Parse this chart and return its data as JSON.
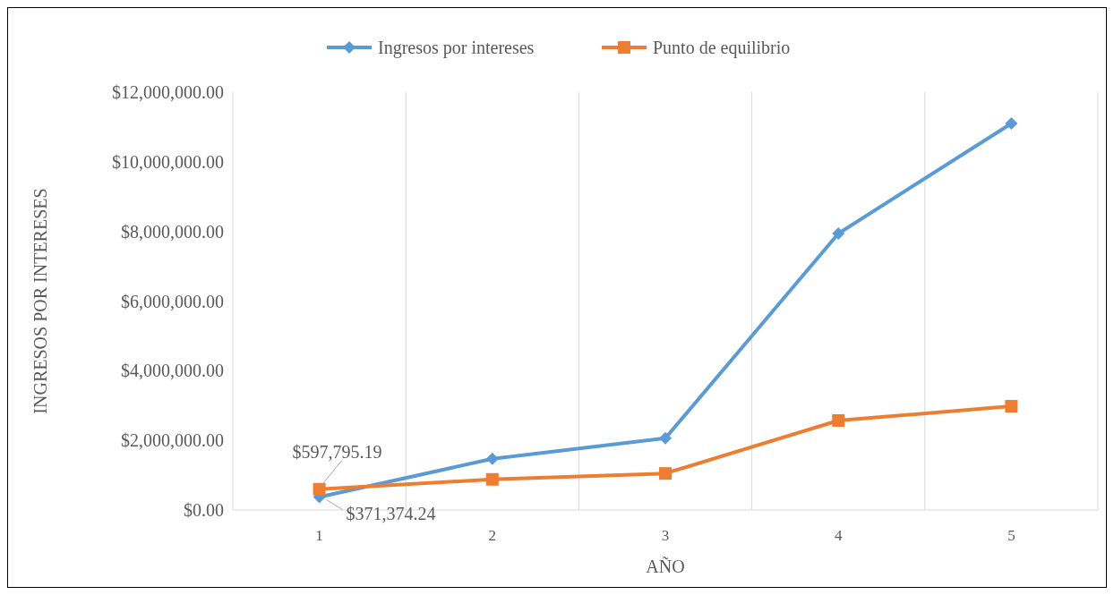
{
  "chart_data": {
    "type": "line",
    "xlabel": "AÑO",
    "ylabel": "INGRESOS POR INTERESES",
    "categories": [
      "1",
      "2",
      "3",
      "4",
      "5"
    ],
    "series": [
      {
        "name": "Ingresos por intereses",
        "color": "#5b9bd5",
        "marker": "diamond",
        "values": [
          371374.24,
          1470000,
          2060000,
          7940000,
          11100000
        ],
        "value_labels": [
          "$371,374.24",
          null,
          null,
          null,
          null
        ]
      },
      {
        "name": "Punto de equilibrio",
        "color": "#ed7d31",
        "marker": "square",
        "values": [
          597795.19,
          880000,
          1050000,
          2570000,
          2980000
        ],
        "value_labels": [
          "$597,795.19",
          null,
          null,
          null,
          null
        ]
      }
    ],
    "ylim": [
      0,
      12000000
    ],
    "yticks": [
      {
        "value": 0,
        "label": "$0.00"
      },
      {
        "value": 2000000,
        "label": "$2,000,000.00"
      },
      {
        "value": 4000000,
        "label": "$4,000,000.00"
      },
      {
        "value": 6000000,
        "label": "$6,000,000.00"
      },
      {
        "value": 8000000,
        "label": "$8,000,000.00"
      },
      {
        "value": 10000000,
        "label": "$10,000,000.00"
      },
      {
        "value": 12000000,
        "label": "$12,000,000.00"
      }
    ],
    "grid": "x",
    "legend": "top"
  }
}
